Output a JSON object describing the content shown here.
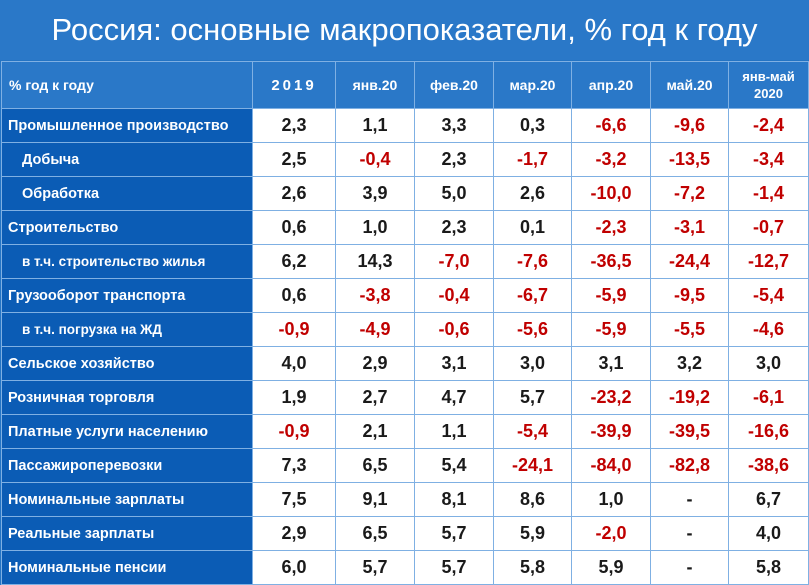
{
  "title": "Россия: основные макропоказатели, % год к году",
  "header": {
    "label": "% год к году",
    "columns": [
      "2019",
      "янв.20",
      "фев.20",
      "мар.20",
      "апр.20",
      "май.20",
      "янв-май 2020"
    ]
  },
  "colors": {
    "background": "#0b5cb5",
    "header": "#2a78c8",
    "negative": "#c00000",
    "cell": "#ffffff"
  },
  "rows": [
    {
      "name": "Промышленное производство",
      "values": [
        "2,3",
        "1,1",
        "3,3",
        "0,3",
        "-6,6",
        "-9,6",
        "-2,4"
      ]
    },
    {
      "name": "Добыча",
      "values": [
        "2,5",
        "-0,4",
        "2,3",
        "-1,7",
        "-3,2",
        "-13,5",
        "-3,4"
      ]
    },
    {
      "name": "Обработка",
      "values": [
        "2,6",
        "3,9",
        "5,0",
        "2,6",
        "-10,0",
        "-7,2",
        "-1,4"
      ]
    },
    {
      "name": "Строительство",
      "values": [
        "0,6",
        "1,0",
        "2,3",
        "0,1",
        "-2,3",
        "-3,1",
        "-0,7"
      ]
    },
    {
      "name": "в т.ч. строительство жилья",
      "values": [
        "6,2",
        "14,3",
        "-7,0",
        "-7,6",
        "-36,5",
        "-24,4",
        "-12,7"
      ]
    },
    {
      "name": "Грузооборот транспорта",
      "values": [
        "0,6",
        "-3,8",
        "-0,4",
        "-6,7",
        "-5,9",
        "-9,5",
        "-5,4"
      ]
    },
    {
      "name": "в т.ч. погрузка на ЖД",
      "values": [
        "-0,9",
        "-4,9",
        "-0,6",
        "-5,6",
        "-5,9",
        "-5,5",
        "-4,6"
      ]
    },
    {
      "name": "Сельское хозяйство",
      "values": [
        "4,0",
        "2,9",
        "3,1",
        "3,0",
        "3,1",
        "3,2",
        "3,0"
      ]
    },
    {
      "name": "Розничная торговля",
      "values": [
        "1,9",
        "2,7",
        "4,7",
        "5,7",
        "-23,2",
        "-19,2",
        "-6,1"
      ]
    },
    {
      "name": "Платные услуги населению",
      "values": [
        "-0,9",
        "2,1",
        "1,1",
        "-5,4",
        "-39,9",
        "-39,5",
        "-16,6"
      ]
    },
    {
      "name": "Пассажироперевозки",
      "values": [
        "7,3",
        "6,5",
        "5,4",
        "-24,1",
        "-84,0",
        "-82,8",
        "-38,6"
      ]
    },
    {
      "name": "Номинальные зарплаты",
      "values": [
        "7,5",
        "9,1",
        "8,1",
        "8,6",
        "1,0",
        "-",
        "6,7"
      ]
    },
    {
      "name": "Реальные зарплаты",
      "values": [
        "2,9",
        "6,5",
        "5,7",
        "5,9",
        "-2,0",
        "-",
        "4,0"
      ]
    },
    {
      "name": "Номинальные пенсии",
      "values": [
        "6,0",
        "5,7",
        "5,7",
        "5,8",
        "5,9",
        "-",
        "5,8"
      ]
    }
  ]
}
